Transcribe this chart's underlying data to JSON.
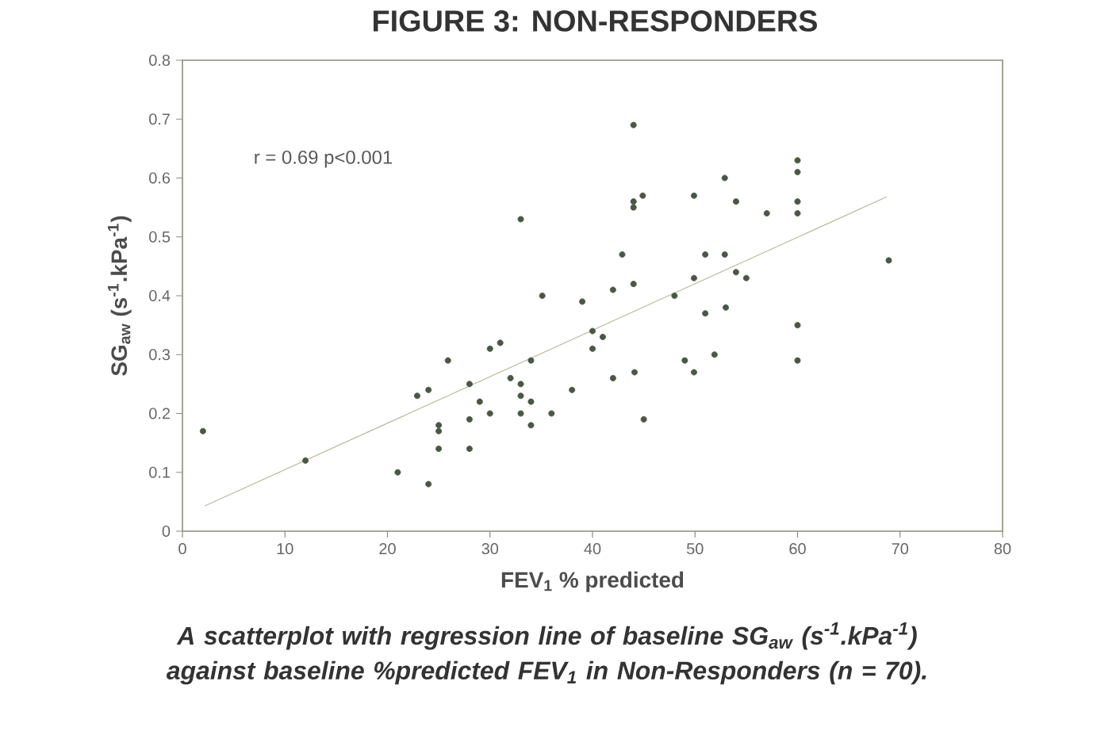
{
  "chart_data": {
    "type": "scatter",
    "title": "FIGURE 3: NON-RESPONDERS",
    "xlabel": "FEV$_{1}$ % predicted",
    "ylabel": "SG$_{aw}$ (s$^{-1}$.kPa$^{-1}$)",
    "xlim": [
      0,
      80
    ],
    "ylim": [
      0,
      0.8
    ],
    "xticks": [
      0,
      10,
      20,
      30,
      40,
      50,
      60,
      70,
      80
    ],
    "yticks": [
      0,
      0.1,
      0.2,
      0.3,
      0.4,
      0.5,
      0.6,
      0.7,
      0.8
    ],
    "grid": false,
    "annotations": [
      "r = 0.69 p<0.001",
      "*A scatterplot with regression line of baseline SG$_{aw}$ (s$^{-1}$.kPa$^{-1}$) against baseline %predicted FEV$_{1}$ in Non-Responders (n = 70).*"
    ],
    "series": [
      {
        "color": "#4a5744",
        "marker": "circle",
        "x": [
          2.0,
          12.0,
          21.0,
          22.9,
          24.0,
          24.0,
          25.0,
          25.0,
          25.0,
          25.9,
          28.0,
          28.0,
          28.0,
          29.0,
          30.0,
          30.0,
          31.0,
          32.0,
          33.0,
          33.0,
          33.0,
          33.0,
          34.0,
          34.0,
          34.0,
          35.1,
          36.0,
          38.0,
          39.0,
          40.0,
          40.0,
          41.0,
          42.0,
          42.0,
          42.9,
          44.0,
          44.0,
          44.0,
          44.0,
          44.1,
          44.9,
          45.0,
          48.0,
          49.0,
          49.9,
          49.9,
          49.9,
          51.0,
          51.0,
          51.9,
          52.9,
          52.9,
          53.0,
          54.0,
          54.0,
          55.0,
          57.0,
          60.0,
          60.0,
          60.0,
          60.0,
          60.0,
          60.0,
          68.9
        ],
        "values": [
          0.17,
          0.12,
          0.1,
          0.23,
          0.24,
          0.08,
          0.18,
          0.17,
          0.14,
          0.29,
          0.25,
          0.19,
          0.14,
          0.22,
          0.31,
          0.2,
          0.32,
          0.26,
          0.53,
          0.25,
          0.23,
          0.2,
          0.29,
          0.22,
          0.18,
          0.4,
          0.2,
          0.24,
          0.39,
          0.34,
          0.31,
          0.33,
          0.41,
          0.26,
          0.47,
          0.69,
          0.56,
          0.55,
          0.42,
          0.27,
          0.57,
          0.19,
          0.4,
          0.29,
          0.57,
          0.43,
          0.27,
          0.47,
          0.37,
          0.3,
          0.6,
          0.47,
          0.38,
          0.56,
          0.44,
          0.43,
          0.54,
          0.63,
          0.61,
          0.56,
          0.54,
          0.35,
          0.29,
          0.46
        ]
      },
      {
        "type": "line",
        "color": "#b9bba0",
        "line_style": "solid",
        "x": [
          2.2,
          68.7
        ],
        "values": [
          0.043,
          0.568
        ]
      }
    ]
  }
}
